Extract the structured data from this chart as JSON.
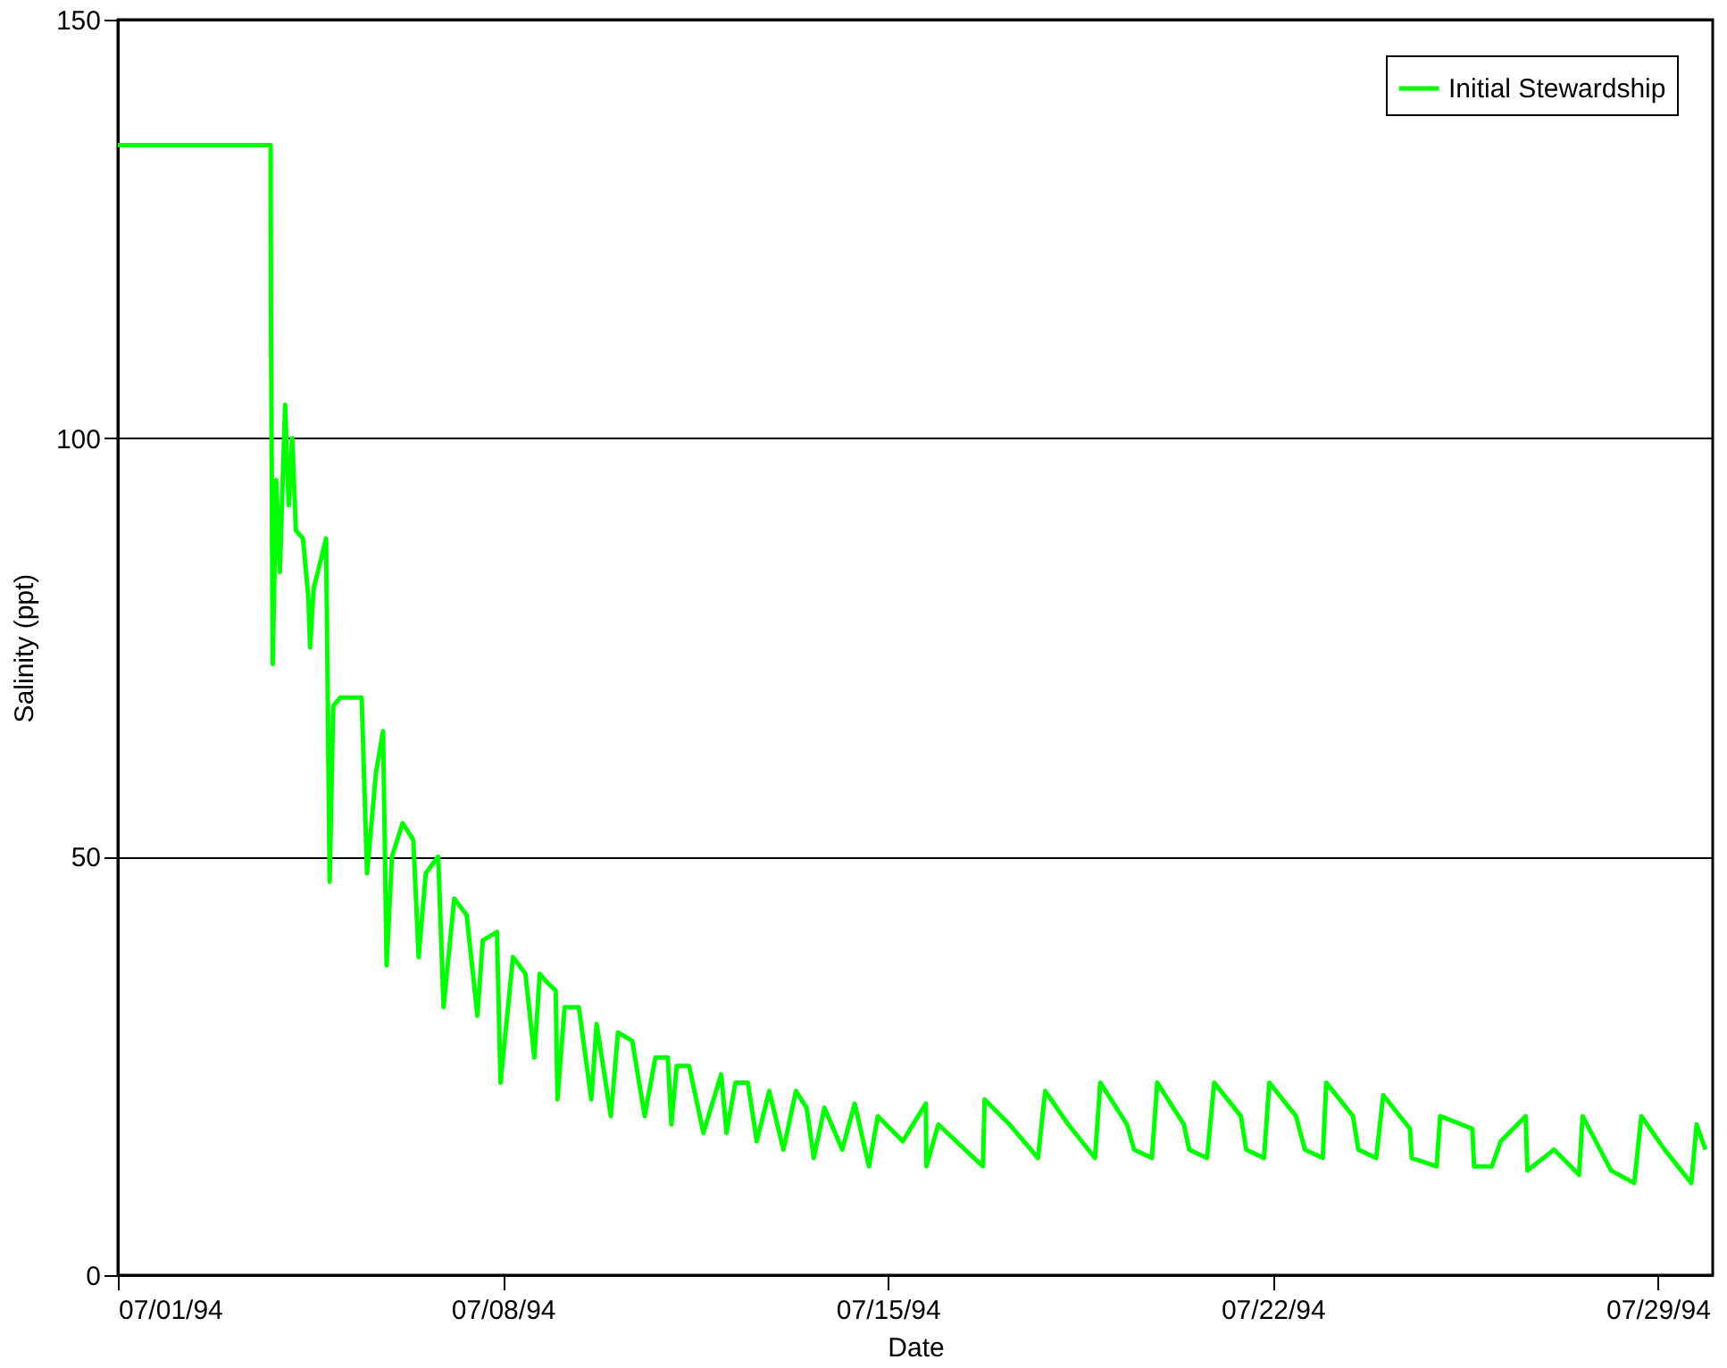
{
  "chart_data": {
    "type": "line",
    "xlabel": "Date",
    "ylabel": "Salinity (ppt)",
    "xlim": [
      "1994-07-01",
      "1994-07-30"
    ],
    "xticks": [
      {
        "value": "1994-07-01",
        "label": "07/01/94"
      },
      {
        "value": "1994-07-08",
        "label": "07/08/94"
      },
      {
        "value": "1994-07-15",
        "label": "07/15/94"
      },
      {
        "value": "1994-07-22",
        "label": "07/22/94"
      },
      {
        "value": "1994-07-29",
        "label": "07/29/94"
      }
    ],
    "ylim": [
      0,
      150
    ],
    "yticks": [
      0,
      50,
      100,
      150
    ],
    "grid": "y",
    "legend": "top right",
    "line_style": "solid",
    "x": [
      "1994-07-01T00:00",
      "1994-07-03T18:40",
      "1994-07-03T18:48",
      "1994-07-03T19:34",
      "1994-07-03T21:08",
      "1994-07-03T22:41",
      "1994-07-04T01:00",
      "1994-07-04T02:34",
      "1994-07-04T04:07",
      "1994-07-04T05:40",
      "1994-07-04T08:47",
      "1994-07-04T11:06",
      "1994-07-04T11:53",
      "1994-07-04T13:26",
      "1994-07-04T18:52",
      "1994-07-04T20:25",
      "1994-07-04T21:58",
      "1994-07-05T01:05",
      "1994-07-05T10:24",
      "1994-07-05T12:44",
      "1994-07-05T16:37",
      "1994-07-05T19:44",
      "1994-07-05T21:17",
      "1994-07-05T23:36",
      "1994-07-06T04:16",
      "1994-07-06T08:56",
      "1994-07-06T11:15",
      "1994-07-06T14:22",
      "1994-07-06T19:48",
      "1994-07-06T22:08",
      "1994-07-07T02:48",
      "1994-07-07T08:14",
      "1994-07-07T12:54",
      "1994-07-07T15:14",
      "1994-07-07T21:26",
      "1994-07-07T22:59",
      "1994-07-08T04:26",
      "1994-07-08T09:52",
      "1994-07-08T13:45",
      "1994-07-08T16:05",
      "1994-07-08T19:12",
      "1994-07-08T23:04",
      "1994-07-08T23:51",
      "1994-07-09T02:57",
      "1994-07-09T09:10",
      "1994-07-09T14:36",
      "1994-07-09T16:56",
      "1994-07-09T23:08",
      "1994-07-10T02:15",
      "1994-07-10T08:28",
      "1994-07-10T13:54",
      "1994-07-10T18:34",
      "1994-07-11T00:00",
      "1994-07-11T01:33",
      "1994-07-11T03:52",
      "1994-07-11T09:18",
      "1994-07-11T15:31",
      "1994-07-11T23:17",
      "1994-07-12T01:37",
      "1994-07-12T05:30",
      "1994-07-12T10:56",
      "1994-07-12T14:49",
      "1994-07-12T20:15",
      "1994-07-13T02:27",
      "1994-07-13T07:54",
      "1994-07-13T12:34",
      "1994-07-13T15:41",
      "1994-07-13T20:20",
      "1994-07-14T04:07",
      "1994-07-14T09:33",
      "1994-07-14T15:46",
      "1994-07-14T19:39",
      "1994-07-15T06:32",
      "1994-07-15T16:37",
      "1994-07-15T16:50",
      "1994-07-15T22:04",
      "1994-07-16T17:30",
      "1994-07-16T18:16",
      "1994-07-17T05:08",
      "1994-07-17T17:34",
      "1994-07-17T20:40",
      "1994-07-18T06:46",
      "1994-07-18T18:25",
      "1994-07-18T20:44",
      "1994-07-19T08:22",
      "1994-07-19T11:29",
      "1994-07-19T19:15",
      "1994-07-19T21:35",
      "1994-07-20T09:13",
      "1994-07-20T11:33",
      "1994-07-20T19:20",
      "1994-07-20T22:26",
      "1994-07-21T10:05",
      "1994-07-21T12:24",
      "1994-07-21T20:10",
      "1994-07-21T22:30",
      "1994-07-22T10:08",
      "1994-07-22T14:01",
      "1994-07-22T21:48",
      "1994-07-22T23:21",
      "1994-07-23T11:00",
      "1994-07-23T13:20",
      "1994-07-23T21:07",
      "1994-07-24T00:13",
      "1994-07-24T11:52",
      "1994-07-24T12:38",
      "1994-07-24T23:31",
      "1994-07-25T01:04",
      "1994-07-25T15:05",
      "1994-07-25T15:51",
      "1994-07-25T23:37",
      "1994-07-26T03:30",
      "1994-07-26T14:23",
      "1994-07-26T15:09",
      "1994-07-27T02:47",
      "1994-07-27T13:40",
      "1994-07-27T15:13",
      "1994-07-28T03:39",
      "1994-07-28T13:45",
      "1994-07-28T16:51",
      "1994-07-29T03:00",
      "1994-07-29T14:39",
      "1994-07-29T16:58",
      "1994-07-29T20:50"
    ],
    "series": [
      {
        "name": "Initial Stewardship",
        "color": "#00ff00",
        "values": [
          135,
          135,
          115,
          73,
          95,
          84,
          104,
          92,
          100,
          89,
          88,
          81,
          75,
          82,
          88,
          47,
          68,
          69,
          69,
          48,
          60,
          65,
          37,
          50,
          54,
          52,
          38,
          48,
          50,
          32,
          45,
          43,
          31,
          40,
          41,
          23,
          38,
          36,
          26,
          36,
          35,
          34,
          21,
          32,
          32,
          21,
          30,
          19,
          29,
          28,
          19,
          26,
          26,
          18,
          25,
          25,
          17,
          24,
          17,
          23,
          23,
          16,
          22,
          15,
          22,
          20,
          14,
          20,
          15,
          20.5,
          13,
          19,
          16,
          20.5,
          13,
          18,
          13,
          21,
          18,
          14,
          22,
          18,
          14,
          23,
          18,
          15,
          14,
          23,
          18,
          15,
          14,
          23,
          19,
          15,
          14,
          23,
          19,
          15,
          14,
          23,
          19,
          15,
          14,
          21.5,
          17.5,
          14,
          13,
          19,
          17.5,
          13,
          13,
          16,
          19,
          12.5,
          15,
          12,
          19,
          12.5,
          11,
          19,
          15,
          11,
          18,
          15
        ]
      }
    ]
  }
}
